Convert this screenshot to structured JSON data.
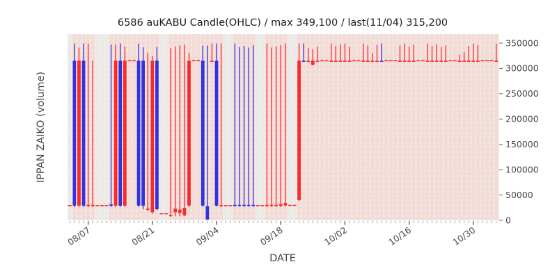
{
  "title": "6586 auKABU Candle(OHLC) / max 349,100 / last(11/04) 315,200",
  "xlabel": "DATE",
  "ylabel": "IPPAN ZAIKO (volume)",
  "colors": {
    "up": "#3333dd",
    "down": "#fb2a2a",
    "day_band": "#f2dcd8",
    "offday_band": "#eceae7",
    "grid_dash": "#f9f1ee",
    "tick": "#5a5a5a",
    "tick_text": "#474747",
    "title_text": "#1c1c1c",
    "background": "#ffffff"
  },
  "chart_data": {
    "type": "candlestick",
    "title": "6586 auKABU Candle(OHLC) / max 349,100 / last(11/04) 315,200",
    "xlabel": "DATE",
    "ylabel": "IPPAN ZAIKO (volume)",
    "max_value": 349100,
    "last_date": "11/04",
    "last_value": 315200,
    "ylim": [
      0,
      367800
    ],
    "yticks": [
      0,
      50000,
      100000,
      150000,
      200000,
      250000,
      300000,
      350000
    ],
    "xtick_labels": [
      "08/07",
      "08/21",
      "09/04",
      "09/18",
      "10/02",
      "10/16",
      "10/30"
    ],
    "legend": "bg d = trading-day band (pink), bg w = closed-day band (grey); flat rows have o=h=l=c",
    "days": [
      [
        "08/03",
        "w",
        "r",
        29000,
        29000,
        29000,
        29000
      ],
      [
        "08/04",
        "d",
        "b",
        29000,
        349100,
        26500,
        315200
      ],
      [
        "08/05",
        "d",
        "r",
        315200,
        341000,
        26500,
        29000
      ],
      [
        "08/06",
        "d",
        "b",
        29000,
        349100,
        26500,
        315200
      ],
      [
        "08/07",
        "d",
        "r",
        30500,
        349100,
        26000,
        29000
      ],
      [
        "08/08",
        "d",
        "r",
        30500,
        315200,
        26000,
        29000
      ],
      [
        "08/09",
        "w",
        "r",
        29000,
        29000,
        29000,
        29000
      ],
      [
        "08/10",
        "w",
        "r",
        29000,
        29000,
        29000,
        29000
      ],
      [
        "08/11",
        "w",
        "r",
        29000,
        29000,
        29000,
        29000
      ],
      [
        "08/12",
        "d",
        "b",
        29000,
        347000,
        26000,
        31500
      ],
      [
        "08/13",
        "d",
        "r",
        315200,
        347000,
        26000,
        29000
      ],
      [
        "08/14",
        "d",
        "b",
        29000,
        349100,
        26500,
        315200
      ],
      [
        "08/15",
        "d",
        "r",
        315200,
        343000,
        26500,
        29000
      ],
      [
        "08/16",
        "d",
        "r",
        315200,
        315200,
        315200,
        315200
      ],
      [
        "08/17",
        "d",
        "r",
        315200,
        315200,
        315200,
        315200
      ],
      [
        "08/18",
        "d",
        "b",
        29000,
        349100,
        26500,
        315200
      ],
      [
        "08/19",
        "d",
        "b",
        29000,
        341500,
        22000,
        315200
      ],
      [
        "08/20",
        "d",
        "r",
        23000,
        331000,
        19000,
        21000
      ],
      [
        "08/21",
        "d",
        "r",
        315200,
        324000,
        13000,
        16000
      ],
      [
        "08/22",
        "d",
        "b",
        22000,
        342000,
        20000,
        315200
      ],
      [
        "08/23",
        "w",
        "r",
        13000,
        13000,
        13000,
        13000
      ],
      [
        "08/24",
        "w",
        "r",
        13000,
        13000,
        13000,
        13000
      ],
      [
        "08/25",
        "d",
        "r",
        10500,
        340000,
        7000,
        8200
      ],
      [
        "08/26",
        "d",
        "r",
        23000,
        343500,
        8000,
        16000
      ],
      [
        "08/27",
        "d",
        "r",
        21000,
        345500,
        8000,
        14500
      ],
      [
        "08/28",
        "d",
        "r",
        24500,
        347000,
        8000,
        10000
      ],
      [
        "08/29",
        "d",
        "r",
        315200,
        330000,
        27000,
        29000
      ],
      [
        "08/30",
        "d",
        "r",
        315200,
        315200,
        315200,
        315200
      ],
      [
        "08/31",
        "d",
        "r",
        315200,
        315200,
        315200,
        315200
      ],
      [
        "09/01",
        "d",
        "b",
        29000,
        345000,
        27000,
        315200
      ],
      [
        "09/02",
        "d",
        "b",
        1500,
        345000,
        600,
        28000
      ],
      [
        "09/03",
        "d",
        "r",
        315200,
        349100,
        315200,
        315200
      ],
      [
        "09/04",
        "d",
        "b",
        29000,
        349100,
        27500,
        315200
      ],
      [
        "09/05",
        "d",
        "r",
        30000,
        349100,
        27000,
        29000
      ],
      [
        "09/06",
        "w",
        "r",
        29000,
        29000,
        29000,
        29000
      ],
      [
        "09/07",
        "w",
        "r",
        29000,
        29000,
        29000,
        29000
      ],
      [
        "09/08",
        "d",
        "b",
        29000,
        349100,
        27000,
        30500
      ],
      [
        "09/09",
        "d",
        "b",
        29000,
        342000,
        27000,
        30500
      ],
      [
        "09/10",
        "d",
        "b",
        29000,
        344500,
        27000,
        30500
      ],
      [
        "09/11",
        "d",
        "b",
        29000,
        341000,
        27000,
        30500
      ],
      [
        "09/12",
        "d",
        "b",
        29000,
        345500,
        27000,
        30500
      ],
      [
        "09/13",
        "w",
        "r",
        29000,
        29000,
        29000,
        29000
      ],
      [
        "09/14",
        "w",
        "r",
        29000,
        29000,
        29000,
        29000
      ],
      [
        "09/15",
        "d",
        "r",
        30500,
        349100,
        26000,
        28500
      ],
      [
        "09/16",
        "d",
        "r",
        30500,
        341000,
        26000,
        28500
      ],
      [
        "09/17",
        "d",
        "r",
        30500,
        343500,
        26000,
        28500
      ],
      [
        "09/18",
        "d",
        "r",
        32000,
        345500,
        26000,
        28500
      ],
      [
        "09/19",
        "d",
        "r",
        34000,
        349100,
        27000,
        29500
      ],
      [
        "09/20",
        "w",
        "r",
        29500,
        29500,
        29500,
        29500
      ],
      [
        "09/21",
        "w",
        "r",
        29500,
        29500,
        29500,
        29500
      ],
      [
        "09/22",
        "d",
        "r",
        315200,
        349100,
        38000,
        40000
      ],
      [
        "09/23",
        "d",
        "b",
        315200,
        349100,
        315200,
        315200
      ],
      [
        "09/24",
        "d",
        "r",
        315200,
        340000,
        315200,
        315200
      ],
      [
        "09/25",
        "d",
        "r",
        315200,
        338000,
        306000,
        307000
      ],
      [
        "09/26",
        "d",
        "r",
        315200,
        343000,
        315200,
        315200
      ],
      [
        "09/27",
        "d",
        "r",
        315200,
        315200,
        315200,
        315200
      ],
      [
        "09/28",
        "d",
        "r",
        315200,
        315200,
        315200,
        315200
      ],
      [
        "09/29",
        "d",
        "r",
        315200,
        349100,
        315200,
        315200
      ],
      [
        "09/30",
        "d",
        "r",
        315200,
        344000,
        315200,
        315200
      ],
      [
        "10/01",
        "d",
        "r",
        315200,
        347000,
        315200,
        315200
      ],
      [
        "10/02",
        "d",
        "r",
        315200,
        349100,
        315200,
        315200
      ],
      [
        "10/03",
        "d",
        "r",
        315200,
        342000,
        315200,
        315200
      ],
      [
        "10/04",
        "d",
        "r",
        315200,
        315200,
        315200,
        315200
      ],
      [
        "10/05",
        "d",
        "r",
        315200,
        315200,
        315200,
        315200
      ],
      [
        "10/06",
        "d",
        "r",
        315200,
        349100,
        315200,
        315200
      ],
      [
        "10/07",
        "d",
        "r",
        315200,
        345000,
        315200,
        315200
      ],
      [
        "10/08",
        "d",
        "r",
        315200,
        330000,
        315200,
        315200
      ],
      [
        "10/09",
        "d",
        "r",
        315200,
        347000,
        315200,
        315200
      ],
      [
        "10/10",
        "d",
        "b",
        315200,
        349100,
        315200,
        315200
      ],
      [
        "10/11",
        "d",
        "r",
        315200,
        315200,
        315200,
        315200
      ],
      [
        "10/12",
        "d",
        "r",
        315200,
        315200,
        315200,
        315200
      ],
      [
        "10/13",
        "d",
        "r",
        315200,
        315200,
        315200,
        315200
      ],
      [
        "10/14",
        "d",
        "r",
        315200,
        345500,
        315200,
        315200
      ],
      [
        "10/15",
        "d",
        "r",
        315200,
        349100,
        315200,
        315200
      ],
      [
        "10/16",
        "d",
        "r",
        315200,
        343000,
        315200,
        315200
      ],
      [
        "10/17",
        "d",
        "r",
        315200,
        346500,
        315200,
        315200
      ],
      [
        "10/18",
        "d",
        "r",
        315200,
        315200,
        315200,
        315200
      ],
      [
        "10/19",
        "d",
        "r",
        315200,
        315200,
        315200,
        315200
      ],
      [
        "10/20",
        "d",
        "r",
        315200,
        349100,
        315200,
        315200
      ],
      [
        "10/21",
        "d",
        "r",
        315200,
        344000,
        315200,
        315200
      ],
      [
        "10/22",
        "d",
        "r",
        315200,
        347500,
        315200,
        315200
      ],
      [
        "10/23",
        "d",
        "r",
        315200,
        342000,
        315200,
        315200
      ],
      [
        "10/24",
        "d",
        "r",
        315200,
        345500,
        315200,
        315200
      ],
      [
        "10/25",
        "d",
        "r",
        315200,
        315200,
        315200,
        315200
      ],
      [
        "10/26",
        "d",
        "r",
        315200,
        315200,
        315200,
        315200
      ],
      [
        "10/27",
        "d",
        "r",
        315200,
        327000,
        315200,
        315200
      ],
      [
        "10/28",
        "d",
        "r",
        315200,
        332000,
        315200,
        315200
      ],
      [
        "10/29",
        "d",
        "r",
        315200,
        344000,
        315200,
        315200
      ],
      [
        "10/30",
        "d",
        "r",
        315200,
        349100,
        315200,
        315200
      ],
      [
        "10/31",
        "d",
        "r",
        315200,
        346000,
        315200,
        315200
      ],
      [
        "11/01",
        "d",
        "r",
        315200,
        315200,
        315200,
        315200
      ],
      [
        "11/02",
        "d",
        "r",
        315200,
        315200,
        315200,
        315200
      ],
      [
        "11/03",
        "d",
        "r",
        315200,
        315200,
        315200,
        315200
      ],
      [
        "11/04",
        "d",
        "r",
        315200,
        349100,
        315200,
        315200
      ]
    ]
  }
}
